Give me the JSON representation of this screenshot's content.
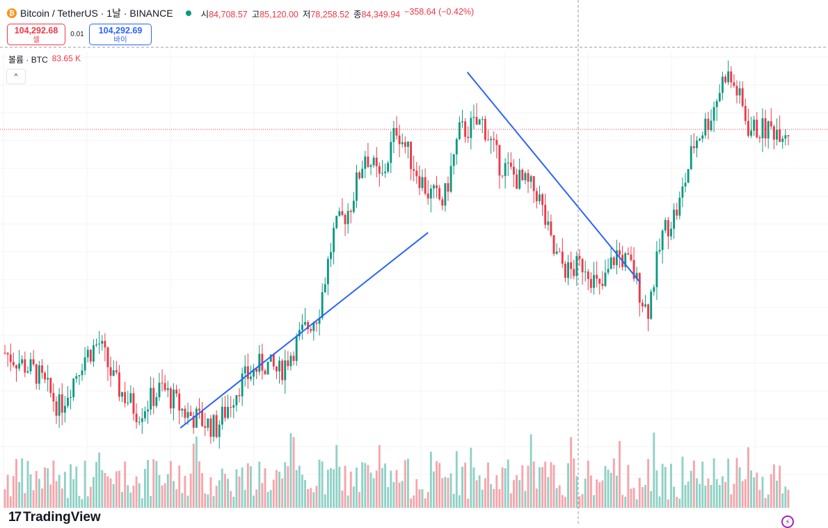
{
  "header": {
    "coin_symbol": "₿",
    "title": "Bitcoin / TetherUS · 1날 · BINANCE",
    "ohlc": [
      {
        "key": "시",
        "value": "84,708.57"
      },
      {
        "key": "고",
        "value": "85,120.00"
      },
      {
        "key": "저",
        "value": "78,258.52"
      },
      {
        "key": "종",
        "value": "84,349.94"
      },
      {
        "key": "",
        "value": "−358.64 (−0.42%)"
      }
    ]
  },
  "trade": {
    "sell_price": "104,292.68",
    "sell_label": "셀",
    "spread": "0.01",
    "buy_price": "104,292.69",
    "buy_label": "바이"
  },
  "volume_legend": {
    "label": "볼륨 · BTC",
    "value": "83.65 K"
  },
  "collapse_symbol": "^",
  "branding": {
    "logo_mark": "17",
    "logo_text": "TradingView"
  },
  "colors": {
    "up": "#089981",
    "down": "#f23645",
    "trendline": "#2962ff",
    "up_volume": "#8fd1c6",
    "down_volume": "#f5a5ab"
  },
  "chart_data": {
    "type": "candlestick",
    "title": "Bitcoin / TetherUS · 1날 · BINANCE",
    "series": [
      {
        "name": "price",
        "approx_close_path": [
          [
            0,
            82000
          ],
          [
            0.04,
            80000
          ],
          [
            0.07,
            76500
          ],
          [
            0.1,
            81500
          ],
          [
            0.12,
            83000
          ],
          [
            0.14,
            79000
          ],
          [
            0.17,
            76000
          ],
          [
            0.2,
            78500
          ],
          [
            0.23,
            76000
          ],
          [
            0.27,
            74500
          ],
          [
            0.3,
            79000
          ],
          [
            0.33,
            81000
          ],
          [
            0.35,
            80000
          ],
          [
            0.38,
            84000
          ],
          [
            0.4,
            86000
          ],
          [
            0.42,
            94000
          ],
          [
            0.44,
            96500
          ],
          [
            0.46,
            102000
          ],
          [
            0.48,
            99000
          ],
          [
            0.5,
            104500
          ],
          [
            0.52,
            101000
          ],
          [
            0.54,
            98000
          ],
          [
            0.56,
            97000
          ],
          [
            0.58,
            104000
          ],
          [
            0.61,
            105000
          ],
          [
            0.63,
            101000
          ],
          [
            0.66,
            99000
          ],
          [
            0.68,
            98000
          ],
          [
            0.7,
            92000
          ],
          [
            0.72,
            90000
          ],
          [
            0.74,
            91000
          ],
          [
            0.76,
            88000
          ],
          [
            0.78,
            92000
          ],
          [
            0.8,
            90500
          ],
          [
            0.82,
            86000
          ],
          [
            0.84,
            94000
          ],
          [
            0.86,
            96500
          ],
          [
            0.88,
            103000
          ],
          [
            0.9,
            105500
          ],
          [
            0.92,
            110000
          ],
          [
            0.935,
            108000
          ],
          [
            0.95,
            104300
          ]
        ]
      }
    ],
    "last_price": 104292.68,
    "volume_unit": "BTC",
    "trendlines": [
      {
        "from": [
          0.225,
          74500
        ],
        "to": [
          0.54,
          94000
        ]
      },
      {
        "from": [
          0.59,
          110000
        ],
        "to": [
          0.81,
          89000
        ]
      }
    ],
    "grid": true
  }
}
